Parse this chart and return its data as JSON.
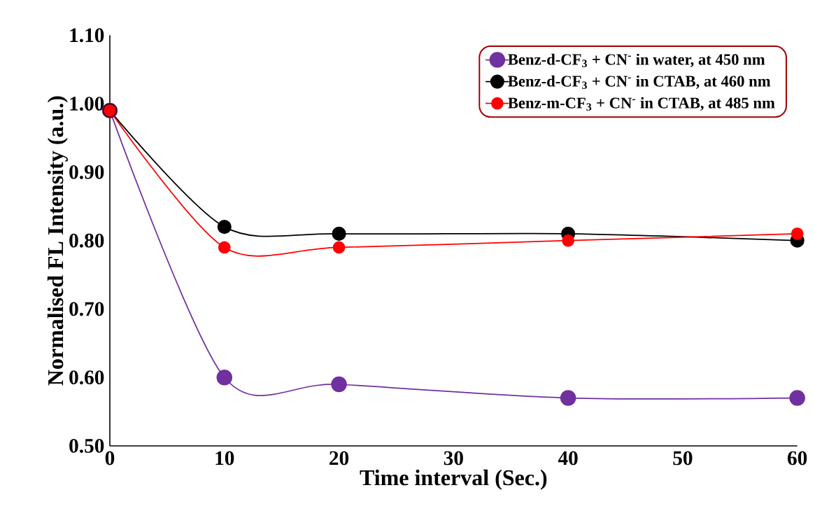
{
  "chart_data": {
    "type": "line",
    "xlabel": "Time interval (Sec.)",
    "ylabel": "Normalised FL Intensity (a.u.)",
    "x": [
      0,
      10,
      20,
      40,
      60
    ],
    "series": [
      {
        "name": "Benz-d-CF$_{3}$ + CN$^{-}$ in water, at 450 nm",
        "color": "#7030a0",
        "values": [
          0.99,
          0.6,
          0.59,
          0.57,
          0.57
        ]
      },
      {
        "name": "Benz-d-CF$_{3}$ + CN$^{-}$ in CTAB, at 460 nm",
        "color": "#000000",
        "values": [
          0.99,
          0.82,
          0.81,
          0.81,
          0.8
        ]
      },
      {
        "name": "Benz-m-CF$_{3}$ + CN$^{-}$ in CTAB, at 485 nm",
        "color": "#ff0000",
        "values": [
          0.99,
          0.79,
          0.79,
          0.8,
          0.81
        ]
      }
    ],
    "xlim": [
      0,
      60
    ],
    "xticks": [
      0,
      10,
      20,
      30,
      40,
      50,
      60
    ],
    "ylim": [
      0.5,
      1.1
    ],
    "yticks": [
      {
        "value": 0.5,
        "label": "0.50"
      },
      {
        "value": 0.6,
        "label": "0.60"
      },
      {
        "value": 0.7,
        "label": "0.70"
      },
      {
        "value": 0.8,
        "label": "0.80"
      },
      {
        "value": 0.9,
        "label": "0.90"
      },
      {
        "value": 1.0,
        "label": "1.00"
      },
      {
        "value": 1.1,
        "label": "1.10"
      }
    ],
    "grid": false,
    "legend": "top right",
    "marker": "circle",
    "line_style": "solid"
  }
}
